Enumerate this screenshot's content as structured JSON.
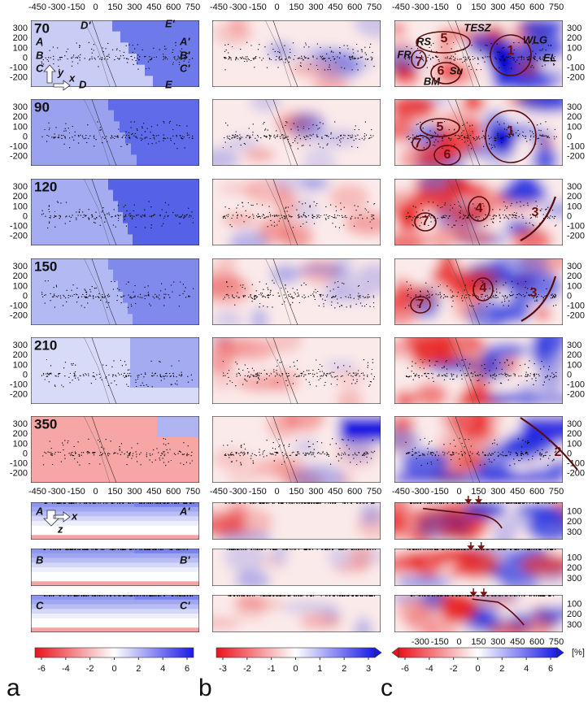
{
  "x_ticks": [
    -450,
    -300,
    -150,
    0,
    150,
    300,
    450,
    600,
    750
  ],
  "y_ticks": [
    300,
    200,
    100,
    0,
    -100,
    -200
  ],
  "depth_ticks": [
    100,
    200,
    300
  ],
  "depths": [
    70,
    90,
    120,
    150,
    210,
    350
  ],
  "map_labels": [
    "A",
    "A'",
    "B",
    "B'",
    "C",
    "C'",
    "D'",
    "D",
    "E'",
    "E",
    "y",
    "x"
  ],
  "section_labels": [
    [
      "A",
      "A'",
      "x",
      "z"
    ],
    [
      "B",
      "B'"
    ],
    [
      "C",
      "C'"
    ]
  ],
  "anomaly_labels": [
    [
      "RS",
      "5",
      "TESZ",
      "1",
      "WLG",
      "EL",
      "FR",
      "7",
      "6",
      "Su",
      "BM"
    ],
    [
      "5",
      "1",
      "7",
      "6"
    ],
    [
      "4",
      "3",
      "7"
    ],
    [
      "4",
      "3",
      "7"
    ],
    [],
    [
      "2"
    ]
  ],
  "colorbars": [
    {
      "ticks": [
        -6,
        -4,
        -2,
        0,
        2,
        4,
        6
      ]
    },
    {
      "ticks": [
        -3,
        -2,
        -1,
        0,
        1,
        2,
        3
      ]
    },
    {
      "ticks": [
        -6,
        -4,
        -2,
        0,
        2,
        4,
        6
      ],
      "unit": "[%]"
    }
  ],
  "panel_letters": [
    "a",
    "b",
    "c"
  ]
}
